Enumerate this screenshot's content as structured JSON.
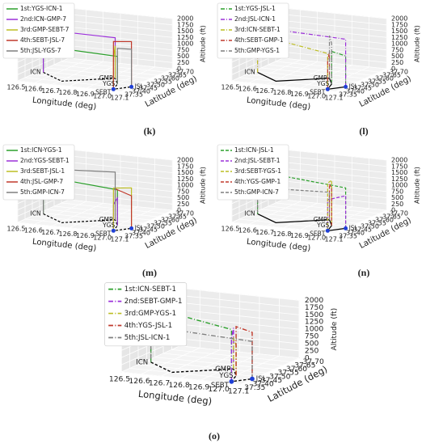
{
  "axes": {
    "x_label": "Longitude (deg)",
    "y_label": "Latitude (deg)",
    "z_label": "Altitude (ft)",
    "x_ticks": [
      "126.5",
      "126.6",
      "126.7",
      "126.8",
      "126.9",
      "127.0",
      "127.1"
    ],
    "y_ticks": [
      "37.35",
      "37.40",
      "37.45",
      "37.50",
      "37.55",
      "37.60",
      "37.65",
      "37.70"
    ],
    "z_ticks": [
      "0",
      "250",
      "500",
      "750",
      "1000",
      "1250",
      "1500",
      "1750",
      "2000"
    ],
    "places": [
      "ICN",
      "GMP",
      "YGS",
      "SEBT",
      "JSL"
    ]
  },
  "panels": [
    {
      "caption": "(k)",
      "style": "solid",
      "legend": [
        "1st:YGS-ICN-1",
        "2nd:ICN-GMP-7",
        "3rd:GMP-SEBT-7",
        "4th:SEBT-JSL-7",
        "5th:JSL-YGS-7"
      ]
    },
    {
      "caption": "(l)",
      "style": "dashdot",
      "legend": [
        "1st:YGS-JSL-1",
        "2nd:JSL-ICN-1",
        "3rd:ICN-SEBT-1",
        "4th:SEBT-GMP-1",
        "5th:GMP-YGS-1"
      ]
    },
    {
      "caption": "(m)",
      "style": "solid",
      "legend": [
        "1st:ICN-YGS-1",
        "2nd:YGS-SEBT-1",
        "3rd:SEBT-JSL-1",
        "4th:JSL-GMP-7",
        "5th:GMP-ICN-7"
      ]
    },
    {
      "caption": "(n)",
      "style": "dashed",
      "legend": [
        "1st:ICN-JSL-1",
        "2nd:JSL-SEBT-1",
        "3rd:SEBT-YGS-1",
        "4th:YGS-GMP-1",
        "5th:GMP-ICN-7"
      ]
    },
    {
      "caption": "(o)",
      "style": "dashdot",
      "legend": [
        "1st:ICN-SEBT-1",
        "2nd:SEBT-GMP-1",
        "3rd:GMP-YGS-1",
        "4th:YGS-JSL-1",
        "5th:JSL-ICN-1"
      ]
    }
  ]
}
